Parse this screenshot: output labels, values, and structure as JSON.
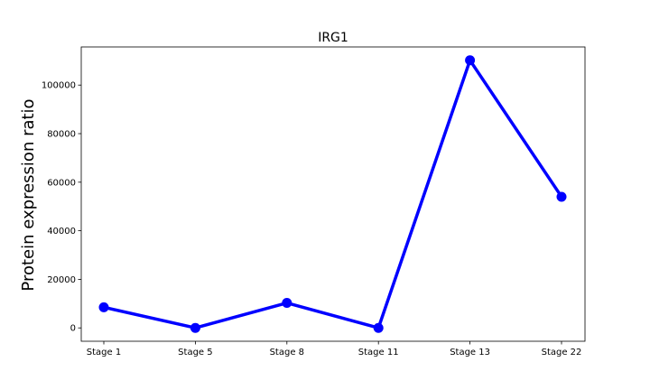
{
  "chart_data": {
    "type": "line",
    "title": "IRG1",
    "xlabel": "",
    "ylabel": "Protein expression ratio",
    "categories": [
      "Stage 1",
      "Stage 5",
      "Stage 8",
      "Stage 11",
      "Stage 13",
      "Stage 22"
    ],
    "series": [
      {
        "values": [
          8500,
          0,
          10300,
          0,
          110200,
          54000
        ],
        "color": "#0000ff"
      }
    ],
    "ylim": [
      -5500,
      115700
    ],
    "yticks": [
      0,
      20000,
      40000,
      60000,
      80000,
      100000
    ],
    "ytick_labels": [
      "0",
      "20000",
      "40000",
      "60000",
      "80000",
      "100000"
    ],
    "grid": false,
    "legend": false
  }
}
